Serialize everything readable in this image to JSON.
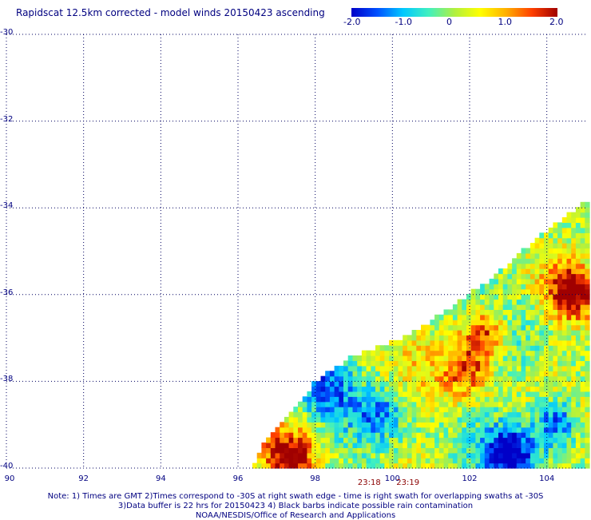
{
  "title": "Rapidscat 12.5km corrected - model winds 20150423 ascending",
  "colorbar": {
    "ticks": [
      "-2.0",
      "-1.0",
      "0",
      "1.0",
      "2.0"
    ],
    "range": [
      -2.0,
      2.0
    ],
    "colors": [
      "#0000c8",
      "#0050ff",
      "#00c8ff",
      "#40f0c0",
      "#b0f040",
      "#ffff00",
      "#ffb000",
      "#ff4000",
      "#a00000"
    ]
  },
  "map": {
    "lat_labels": [
      "-30",
      "-32",
      "-34",
      "-36",
      "-38",
      "-40"
    ],
    "lon_labels": [
      "90",
      "92",
      "94",
      "96",
      "98",
      "100",
      "102",
      "104"
    ],
    "lat_range": [
      -40,
      -30
    ],
    "lon_range": [
      90,
      105
    ],
    "grid": "dotted",
    "time_labels": [
      "23:18",
      "23:19"
    ],
    "time_label_lons": [
      99.4,
      100.4
    ],
    "swath": {
      "edge_points": [
        [
          96.4,
          -40
        ],
        [
          96.6,
          -39.5
        ],
        [
          97.2,
          -38.9
        ],
        [
          98.0,
          -38.0
        ],
        [
          99.0,
          -37.4
        ],
        [
          100.3,
          -37.0
        ],
        [
          101.5,
          -36.3
        ],
        [
          102.6,
          -35.6
        ],
        [
          103.6,
          -34.8
        ],
        [
          104.9,
          -33.9
        ]
      ],
      "hot_spots": [
        {
          "lon": 102.3,
          "lat": -36.9,
          "value": 2.0
        },
        {
          "lon": 104.6,
          "lat": -36.0,
          "value": 1.9
        },
        {
          "lon": 97.3,
          "lat": -39.8,
          "value": 1.8
        },
        {
          "lon": 101.9,
          "lat": -37.8,
          "value": 1.4
        }
      ],
      "cold_spots": [
        {
          "lon": 103.0,
          "lat": -39.7,
          "value": -2.0
        },
        {
          "lon": 104.2,
          "lat": -39.0,
          "value": -2.0
        },
        {
          "lon": 98.2,
          "lat": -38.2,
          "value": -1.3
        },
        {
          "lon": 99.6,
          "lat": -38.8,
          "value": -1.0
        }
      ]
    }
  },
  "notes": [
    "Note: 1) Times are GMT 2)Times correspond to -30S at right swath edge - time is right swath for overlapping swaths at -30S",
    "3)Data buffer is 22 hrs for 20150423 4) Black barbs indicate possible rain contamination",
    "NOAA/NESDIS/Office of Research and Applications"
  ]
}
